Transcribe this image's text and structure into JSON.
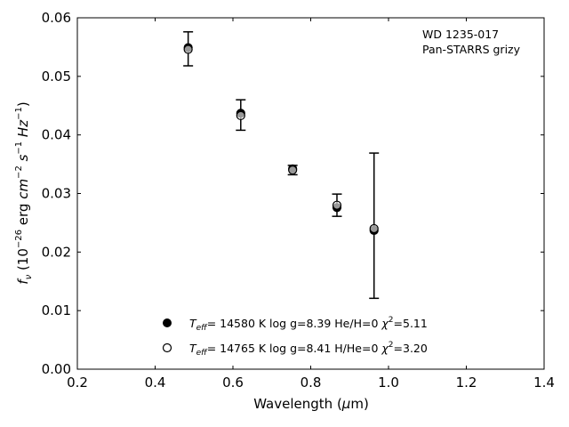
{
  "chart_data": {
    "type": "scatter",
    "annotation": [
      "WD 1235-017",
      "Pan-STARRS grizy"
    ],
    "xlabel": {
      "main": "Wavelength (",
      "mu": "μ",
      "unit": "m)"
    },
    "ylabel": {
      "f": "f",
      "nu": "ν",
      "text": " (10",
      "exp": "−26",
      "mid": " erg ",
      "cm": "cm",
      "cm_exp": "−2",
      "s": " s",
      "s_exp": "−1",
      "hz": " Hz",
      "hz_exp": "−1",
      "close": ")"
    },
    "xlim": [
      0.2,
      1.4
    ],
    "ylim": [
      0.0,
      0.06
    ],
    "x_ticks": [
      "0.2",
      "0.4",
      "0.6",
      "0.8",
      "1.0",
      "1.2",
      "1.4"
    ],
    "y_ticks": [
      "0.00",
      "0.01",
      "0.02",
      "0.03",
      "0.04",
      "0.05",
      "0.06"
    ],
    "observed": {
      "x": [
        0.4849,
        0.6201,
        0.7535,
        0.8674,
        0.9628
      ],
      "y": [
        0.0547,
        0.0434,
        0.034,
        0.028,
        0.0245
      ],
      "err": [
        0.0029,
        0.0026,
        0.0008,
        0.0019,
        0.0124
      ]
    },
    "series": [
      {
        "marker": "filled-circle",
        "legend": {
          "T": "T",
          "sub": "eff",
          "rest": "= 14580 K  log g=8.39  He/H=0  ",
          "chi": "χ",
          "chi_exp": "2",
          "chi_val": "=5.11"
        },
        "x": [
          0.4849,
          0.6201,
          0.7535,
          0.8674,
          0.9628
        ],
        "y": [
          0.0549,
          0.0437,
          0.0342,
          0.0276,
          0.0237
        ]
      },
      {
        "marker": "open-circle",
        "legend": {
          "T": "T",
          "sub": "eff",
          "rest": "= 14765 K  log g=8.41  H/He=0  ",
          "chi": "χ",
          "chi_exp": "2",
          "chi_val": "=3.20"
        },
        "x": [
          0.4849,
          0.6201,
          0.7535,
          0.8674,
          0.9628
        ],
        "y": [
          0.0546,
          0.0433,
          0.034,
          0.028,
          0.024
        ]
      }
    ],
    "grid": false,
    "legend_position": "lower-center"
  }
}
